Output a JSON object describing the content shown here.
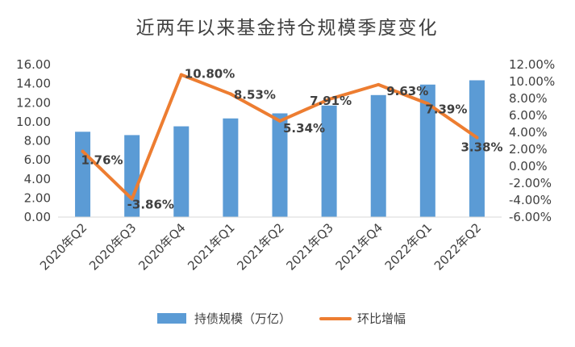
{
  "chart_data": {
    "type": "bar+line",
    "title": "近两年以来基金持仓规模季度变化",
    "categories": [
      "2020年Q2",
      "2020年Q3",
      "2020年Q4",
      "2021年Q1",
      "2021年Q2",
      "2021年Q3",
      "2021年Q4",
      "2022年Q1",
      "2022年Q2"
    ],
    "series": [
      {
        "name": "持债规模（万亿）",
        "type": "bar",
        "axis": "left",
        "color": "#5b9bd5",
        "values": [
          8.95,
          8.6,
          9.52,
          10.35,
          10.88,
          11.7,
          12.8,
          13.9,
          14.35
        ]
      },
      {
        "name": "环比增幅",
        "type": "line",
        "axis": "right",
        "color": "#ed7d31",
        "values": [
          1.76,
          -3.86,
          10.8,
          8.53,
          5.34,
          7.91,
          9.63,
          7.39,
          3.38
        ],
        "labels": [
          "1.76%",
          "-3.86%",
          "10.80%",
          "8.53%",
          "5.34%",
          "7.91%",
          "9.63%",
          "7.39%",
          "3.38%"
        ]
      }
    ],
    "y_left": {
      "range": [
        0,
        16
      ],
      "ticks": [
        "0.00",
        "2.00",
        "4.00",
        "6.00",
        "8.00",
        "10.00",
        "12.00",
        "14.00",
        "16.00"
      ]
    },
    "y_right": {
      "range": [
        -6,
        12
      ],
      "ticks": [
        "-6.00%",
        "-4.00%",
        "-2.00%",
        "0.00%",
        "2.00%",
        "4.00%",
        "6.00%",
        "8.00%",
        "10.00%",
        "12.00%"
      ]
    },
    "grid": false,
    "legend_position": "bottom"
  }
}
